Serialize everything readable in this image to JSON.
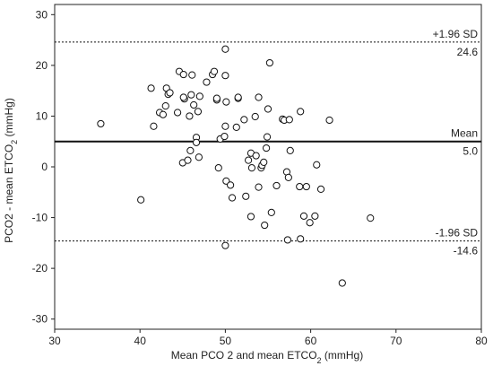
{
  "chart_data": {
    "type": "scatter",
    "xlabel": "Mean PCO 2 and mean ETCO2 (mmHg)",
    "ylabel": "PCO2 - mean ETCO2 (mmHg)",
    "xlim": [
      30,
      80
    ],
    "ylim": [
      -32,
      32
    ],
    "xticks": [
      30,
      40,
      50,
      60,
      70,
      80
    ],
    "yticks": [
      -30,
      -20,
      -10,
      0,
      10,
      20,
      30
    ],
    "grid": false,
    "reference_lines": [
      {
        "id": "upper",
        "label": "+1.96 SD",
        "value_label": "24.6",
        "value": 24.6,
        "style": "dashed"
      },
      {
        "id": "mean",
        "label": "Mean",
        "value_label": "5.0",
        "value": 5.0,
        "style": "solid"
      },
      {
        "id": "lower",
        "label": "-1.96 SD",
        "value_label": "-14.6",
        "value": -14.6,
        "style": "dashed"
      }
    ],
    "points": [
      [
        35.4,
        8.5
      ],
      [
        40.1,
        -6.5
      ],
      [
        41.3,
        15.5
      ],
      [
        41.6,
        8.0
      ],
      [
        42.3,
        10.7
      ],
      [
        42.7,
        10.3
      ],
      [
        43.0,
        12.0
      ],
      [
        43.1,
        15.5
      ],
      [
        43.3,
        14.3
      ],
      [
        43.5,
        14.6
      ],
      [
        44.4,
        10.7
      ],
      [
        44.6,
        18.8
      ],
      [
        45.1,
        18.2
      ],
      [
        45.2,
        13.4
      ],
      [
        45.1,
        13.7
      ],
      [
        45.0,
        0.8
      ],
      [
        45.6,
        1.3
      ],
      [
        45.9,
        3.2
      ],
      [
        45.8,
        10.0
      ],
      [
        46.0,
        14.2
      ],
      [
        46.1,
        18.1
      ],
      [
        46.3,
        12.2
      ],
      [
        46.6,
        5.8
      ],
      [
        46.6,
        4.8
      ],
      [
        46.9,
        1.9
      ],
      [
        47.0,
        13.9
      ],
      [
        46.8,
        10.9
      ],
      [
        47.8,
        16.7
      ],
      [
        48.5,
        18.2
      ],
      [
        48.7,
        18.8
      ],
      [
        49.0,
        13.2
      ],
      [
        49.0,
        13.5
      ],
      [
        49.4,
        5.5
      ],
      [
        49.2,
        -0.2
      ],
      [
        49.9,
        6.0
      ],
      [
        50.0,
        8.0
      ],
      [
        50.1,
        12.8
      ],
      [
        50.0,
        23.2
      ],
      [
        50.0,
        18.0
      ],
      [
        50.1,
        -2.8
      ],
      [
        50.6,
        -3.6
      ],
      [
        50.8,
        -6.1
      ],
      [
        50.0,
        -15.5
      ],
      [
        51.3,
        7.8
      ],
      [
        51.5,
        13.5
      ],
      [
        51.5,
        13.7
      ],
      [
        52.2,
        9.3
      ],
      [
        52.4,
        -5.8
      ],
      [
        52.7,
        1.3
      ],
      [
        53.0,
        2.7
      ],
      [
        53.1,
        -0.2
      ],
      [
        53.0,
        -9.8
      ],
      [
        53.5,
        9.9
      ],
      [
        53.6,
        2.2
      ],
      [
        53.9,
        -4.0
      ],
      [
        53.9,
        13.7
      ],
      [
        54.2,
        -0.2
      ],
      [
        54.3,
        0.3
      ],
      [
        54.5,
        0.9
      ],
      [
        54.6,
        -11.5
      ],
      [
        54.8,
        3.7
      ],
      [
        54.9,
        5.9
      ],
      [
        55.0,
        11.4
      ],
      [
        55.2,
        20.5
      ],
      [
        55.4,
        -9.0
      ],
      [
        56.0,
        -3.7
      ],
      [
        56.7,
        9.4
      ],
      [
        56.9,
        9.2
      ],
      [
        57.2,
        -1.0
      ],
      [
        57.3,
        -14.4
      ],
      [
        57.4,
        -2.1
      ],
      [
        57.5,
        9.3
      ],
      [
        57.6,
        3.2
      ],
      [
        58.7,
        -3.9
      ],
      [
        58.8,
        10.9
      ],
      [
        58.8,
        -14.2
      ],
      [
        59.2,
        -9.7
      ],
      [
        59.5,
        -3.9
      ],
      [
        59.9,
        -11.0
      ],
      [
        60.5,
        -9.7
      ],
      [
        60.7,
        0.4
      ],
      [
        61.2,
        -4.4
      ],
      [
        62.2,
        9.2
      ],
      [
        63.7,
        -22.9
      ],
      [
        67.0,
        -10.1
      ]
    ]
  }
}
